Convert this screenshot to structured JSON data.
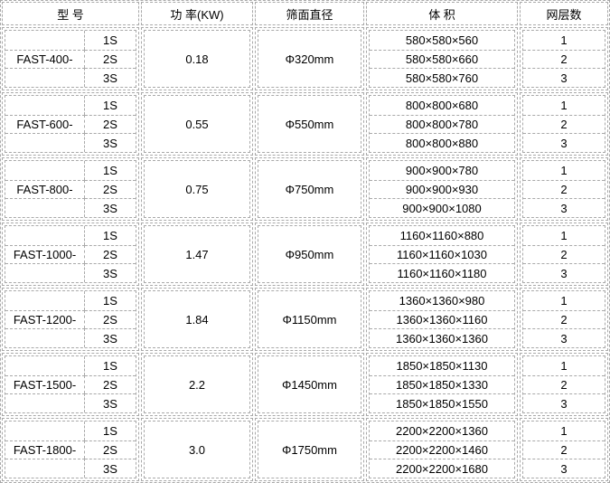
{
  "colors": {
    "border": "#a9a9a9",
    "text": "#000000",
    "background": "#ffffff"
  },
  "chart_data": {
    "type": "table",
    "headers": [
      "型 号",
      "功 率(KW)",
      "筛面直径",
      "体 积",
      "网层数"
    ],
    "groups": [
      {
        "model": "FAST-400-",
        "sizes": [
          "1S",
          "2S",
          "3S"
        ],
        "power": "0.18",
        "diameter": "Φ320mm",
        "volumes": [
          "580×580×560",
          "580×580×660",
          "580×580×760"
        ],
        "layers": [
          "1",
          "2",
          "3"
        ]
      },
      {
        "model": "FAST-600-",
        "sizes": [
          "1S",
          "2S",
          "3S"
        ],
        "power": "0.55",
        "diameter": "Φ550mm",
        "volumes": [
          "800×800×680",
          "800×800×780",
          "800×800×880"
        ],
        "layers": [
          "1",
          "2",
          "3"
        ]
      },
      {
        "model": "FAST-800-",
        "sizes": [
          "1S",
          "2S",
          "3S"
        ],
        "power": "0.75",
        "diameter": "Φ750mm",
        "volumes": [
          "900×900×780",
          "900×900×930",
          "900×900×1080"
        ],
        "layers": [
          "1",
          "2",
          "3"
        ]
      },
      {
        "model": "FAST-1000-",
        "sizes": [
          "1S",
          "2S",
          "3S"
        ],
        "power": "1.47",
        "diameter": "Φ950mm",
        "volumes": [
          "1160×1160×880",
          "1160×1160×1030",
          "1160×1160×1180"
        ],
        "layers": [
          "1",
          "2",
          "3"
        ]
      },
      {
        "model": "FAST-1200-",
        "sizes": [
          "1S",
          "2S",
          "3S"
        ],
        "power": "1.84",
        "diameter": "Φ1150mm",
        "volumes": [
          "1360×1360×980",
          "1360×1360×1160",
          "1360×1360×1360"
        ],
        "layers": [
          "1",
          "2",
          "3"
        ]
      },
      {
        "model": "FAST-1500-",
        "sizes": [
          "1S",
          "2S",
          "3S"
        ],
        "power": "2.2",
        "diameter": "Φ1450mm",
        "volumes": [
          "1850×1850×1130",
          "1850×1850×1330",
          "1850×1850×1550"
        ],
        "layers": [
          "1",
          "2",
          "3"
        ]
      },
      {
        "model": "FAST-1800-",
        "sizes": [
          "1S",
          "2S",
          "3S"
        ],
        "power": "3.0",
        "diameter": "Φ1750mm",
        "volumes": [
          "2200×2200×1360",
          "2200×2200×1460",
          "2200×2200×1680"
        ],
        "layers": [
          "1",
          "2",
          "3"
        ]
      }
    ]
  }
}
